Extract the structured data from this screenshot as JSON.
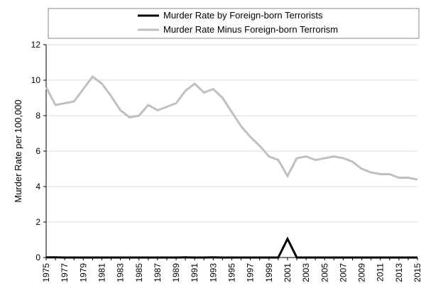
{
  "chart_data": {
    "type": "line",
    "title": "",
    "xlabel": "",
    "ylabel": "Murder Rate per 100,000",
    "ylim": [
      0,
      12
    ],
    "yticks": [
      0,
      2,
      4,
      6,
      8,
      10,
      12
    ],
    "xticks": [
      1975,
      1977,
      1979,
      1981,
      1983,
      1985,
      1987,
      1989,
      1991,
      1993,
      1995,
      1997,
      1999,
      2001,
      2003,
      2005,
      2007,
      2009,
      2011,
      2013,
      2015
    ],
    "x": [
      1975,
      1976,
      1977,
      1978,
      1979,
      1980,
      1981,
      1982,
      1983,
      1984,
      1985,
      1986,
      1987,
      1988,
      1989,
      1990,
      1991,
      1992,
      1993,
      1994,
      1995,
      1996,
      1997,
      1998,
      1999,
      2000,
      2001,
      2002,
      2003,
      2004,
      2005,
      2006,
      2007,
      2008,
      2009,
      2010,
      2011,
      2012,
      2013,
      2014,
      2015
    ],
    "grid": true,
    "legend_position": "top",
    "series": [
      {
        "name": "Murder Rate by Foreign-born Terrorists",
        "color": "#000000",
        "values": [
          0.01,
          0.01,
          0.0,
          0.0,
          0.0,
          0.0,
          0.0,
          0.0,
          0.0,
          0.0,
          0.0,
          0.0,
          0.0,
          0.0,
          0.0,
          0.01,
          0.0,
          0.0,
          0.01,
          0.0,
          0.0,
          0.0,
          0.0,
          0.0,
          0.0,
          0.0,
          1.05,
          0.0,
          0.0,
          0.0,
          0.0,
          0.0,
          0.0,
          0.0,
          0.0,
          0.0,
          0.0,
          0.0,
          0.0,
          0.0,
          0.0
        ]
      },
      {
        "name": "Murder Rate Minus Foreign-born Terrorism",
        "color": "#c0c0c0",
        "values": [
          9.6,
          8.6,
          8.7,
          8.8,
          9.5,
          10.2,
          9.8,
          9.1,
          8.3,
          7.9,
          8.0,
          8.6,
          8.3,
          8.5,
          8.7,
          9.4,
          9.8,
          9.3,
          9.5,
          9.0,
          8.2,
          7.4,
          6.8,
          6.3,
          5.7,
          5.5,
          4.6,
          5.6,
          5.7,
          5.5,
          5.6,
          5.7,
          5.6,
          5.4,
          5.0,
          4.8,
          4.7,
          4.7,
          4.5,
          4.5,
          4.4
        ]
      }
    ]
  }
}
